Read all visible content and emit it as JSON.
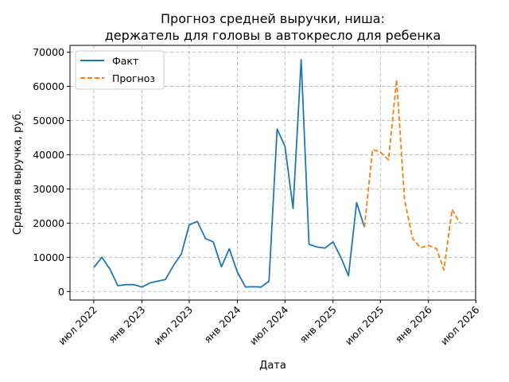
{
  "chart_data": {
    "type": "line",
    "title": [
      "Прогноз средней выручки, ниша:",
      "держатель для головы в автокресло для ребенка"
    ],
    "xlabel": "Дата",
    "ylabel": "Средняя выручка, руб.",
    "ylim": [
      -2500,
      72000
    ],
    "xlim": [
      "2022-04-01",
      "2026-06-30"
    ],
    "grid": true,
    "legend_position": "top-left",
    "x_ticks": [
      {
        "date": "2022-07-01",
        "label": "июл 2022"
      },
      {
        "date": "2023-01-01",
        "label": "янв 2023"
      },
      {
        "date": "2023-07-01",
        "label": "июл 2023"
      },
      {
        "date": "2024-01-01",
        "label": "янв 2024"
      },
      {
        "date": "2024-07-01",
        "label": "июл 2024"
      },
      {
        "date": "2025-01-01",
        "label": "янв 2025"
      },
      {
        "date": "2025-07-01",
        "label": "июл 2025"
      },
      {
        "date": "2026-01-01",
        "label": "янв 2026"
      },
      {
        "date": "2026-07-01",
        "label": "июл 2026"
      }
    ],
    "y_ticks": [
      0,
      10000,
      20000,
      30000,
      40000,
      50000,
      60000,
      70000
    ],
    "series": [
      {
        "name": "Факт",
        "color": "#1f77b4",
        "style": "solid",
        "points": [
          {
            "x": "2022-07-01",
            "y": 7000
          },
          {
            "x": "2022-08-01",
            "y": 10000
          },
          {
            "x": "2022-09-01",
            "y": 6500
          },
          {
            "x": "2022-10-01",
            "y": 1700
          },
          {
            "x": "2022-11-01",
            "y": 2000
          },
          {
            "x": "2022-12-01",
            "y": 2000
          },
          {
            "x": "2023-01-01",
            "y": 1300
          },
          {
            "x": "2023-02-01",
            "y": 2500
          },
          {
            "x": "2023-03-01",
            "y": 3000
          },
          {
            "x": "2023-04-01",
            "y": 3500
          },
          {
            "x": "2023-05-01",
            "y": 7500
          },
          {
            "x": "2023-06-01",
            "y": 11000
          },
          {
            "x": "2023-07-01",
            "y": 19500
          },
          {
            "x": "2023-08-01",
            "y": 20500
          },
          {
            "x": "2023-09-01",
            "y": 15500
          },
          {
            "x": "2023-10-01",
            "y": 14500
          },
          {
            "x": "2023-11-01",
            "y": 7200
          },
          {
            "x": "2023-12-01",
            "y": 12500
          },
          {
            "x": "2024-01-01",
            "y": 5700
          },
          {
            "x": "2024-02-01",
            "y": 1300
          },
          {
            "x": "2024-03-01",
            "y": 1400
          },
          {
            "x": "2024-04-01",
            "y": 1300
          },
          {
            "x": "2024-05-01",
            "y": 3000
          },
          {
            "x": "2024-06-01",
            "y": 47500
          },
          {
            "x": "2024-07-01",
            "y": 42500
          },
          {
            "x": "2024-08-01",
            "y": 24300
          },
          {
            "x": "2024-09-01",
            "y": 67800
          },
          {
            "x": "2024-10-01",
            "y": 13800
          },
          {
            "x": "2024-11-01",
            "y": 13000
          },
          {
            "x": "2024-12-01",
            "y": 12700
          },
          {
            "x": "2025-01-01",
            "y": 14500
          },
          {
            "x": "2025-02-01",
            "y": 9800
          },
          {
            "x": "2025-03-01",
            "y": 4600
          },
          {
            "x": "2025-04-01",
            "y": 26000
          },
          {
            "x": "2025-05-01",
            "y": 18800
          }
        ]
      },
      {
        "name": "Прогноз",
        "color": "#ff7f0e",
        "style": "dashed",
        "points": [
          {
            "x": "2025-05-01",
            "y": 18800
          },
          {
            "x": "2025-06-01",
            "y": 41500
          },
          {
            "x": "2025-07-01",
            "y": 40800
          },
          {
            "x": "2025-08-01",
            "y": 38500
          },
          {
            "x": "2025-09-01",
            "y": 62000
          },
          {
            "x": "2025-10-01",
            "y": 27000
          },
          {
            "x": "2025-11-01",
            "y": 15500
          },
          {
            "x": "2025-12-01",
            "y": 12800
          },
          {
            "x": "2026-01-01",
            "y": 13500
          },
          {
            "x": "2026-02-01",
            "y": 12500
          },
          {
            "x": "2026-03-01",
            "y": 6300
          },
          {
            "x": "2026-04-01",
            "y": 24000
          },
          {
            "x": "2026-05-01",
            "y": 20000
          }
        ]
      }
    ]
  }
}
